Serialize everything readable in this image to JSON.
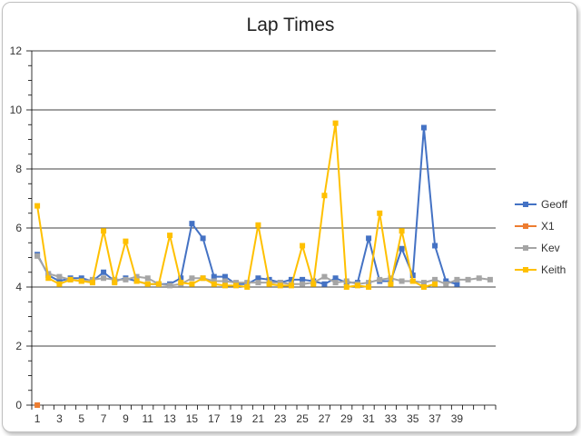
{
  "chart_data": {
    "type": "line",
    "title": "Lap Times",
    "ylim": [
      0,
      12
    ],
    "yticks": [
      "0",
      "2",
      "4",
      "6",
      "8",
      "10",
      "12"
    ],
    "x_labels": [
      "1",
      "3",
      "5",
      "7",
      "9",
      "11",
      "13",
      "15",
      "17",
      "19",
      "21",
      "23",
      "25",
      "27",
      "29",
      "31",
      "33",
      "35",
      "37",
      "39"
    ],
    "grid": "horizontal",
    "legend_position": "right",
    "series": [
      {
        "name": "Geoff",
        "color": "#4472c4",
        "start_lap": 1,
        "values": [
          5.1,
          4.4,
          4.2,
          4.3,
          4.3,
          4.2,
          4.5,
          4.2,
          4.3,
          4.2,
          4.1,
          4.1,
          4.1,
          4.3,
          6.15,
          5.65,
          4.35,
          4.35,
          4.1,
          4.1,
          4.3,
          4.25,
          4.15,
          4.25,
          4.25,
          4.2,
          4.1,
          4.3,
          4.15,
          4.15,
          5.65,
          4.2,
          4.2,
          5.3,
          4.4,
          9.4,
          5.4,
          4.2,
          4.1
        ]
      },
      {
        "name": "X1",
        "color": "#ed7d31",
        "start_lap": 1,
        "values": [
          0
        ]
      },
      {
        "name": "Kev",
        "color": "#a5a5a5",
        "start_lap": 1,
        "values": [
          5.05,
          4.45,
          4.35,
          4.25,
          4.2,
          4.25,
          4.3,
          4.25,
          4.25,
          4.35,
          4.3,
          4.1,
          4.05,
          4.1,
          4.3,
          4.3,
          4.2,
          4.2,
          4.15,
          4.15,
          4.15,
          4.15,
          4.15,
          4.1,
          4.1,
          4.15,
          4.35,
          4.15,
          4.2,
          4.1,
          4.15,
          4.25,
          4.3,
          4.2,
          4.2,
          4.15,
          4.25,
          4.1,
          4.25,
          4.25,
          4.3,
          4.25
        ]
      },
      {
        "name": "Keith",
        "color": "#ffc000",
        "start_lap": 1,
        "values": [
          6.75,
          4.3,
          4.1,
          4.25,
          4.2,
          4.15,
          5.9,
          4.15,
          5.55,
          4.2,
          4.1,
          4.1,
          5.75,
          4.15,
          4.1,
          4.3,
          4.1,
          4.05,
          4.05,
          4.0,
          6.1,
          4.1,
          4.05,
          4.05,
          5.4,
          4.1,
          7.1,
          9.55,
          4.0,
          4.05,
          4.0,
          6.5,
          4.1,
          5.9,
          4.2,
          4.0,
          4.1
        ]
      }
    ]
  }
}
